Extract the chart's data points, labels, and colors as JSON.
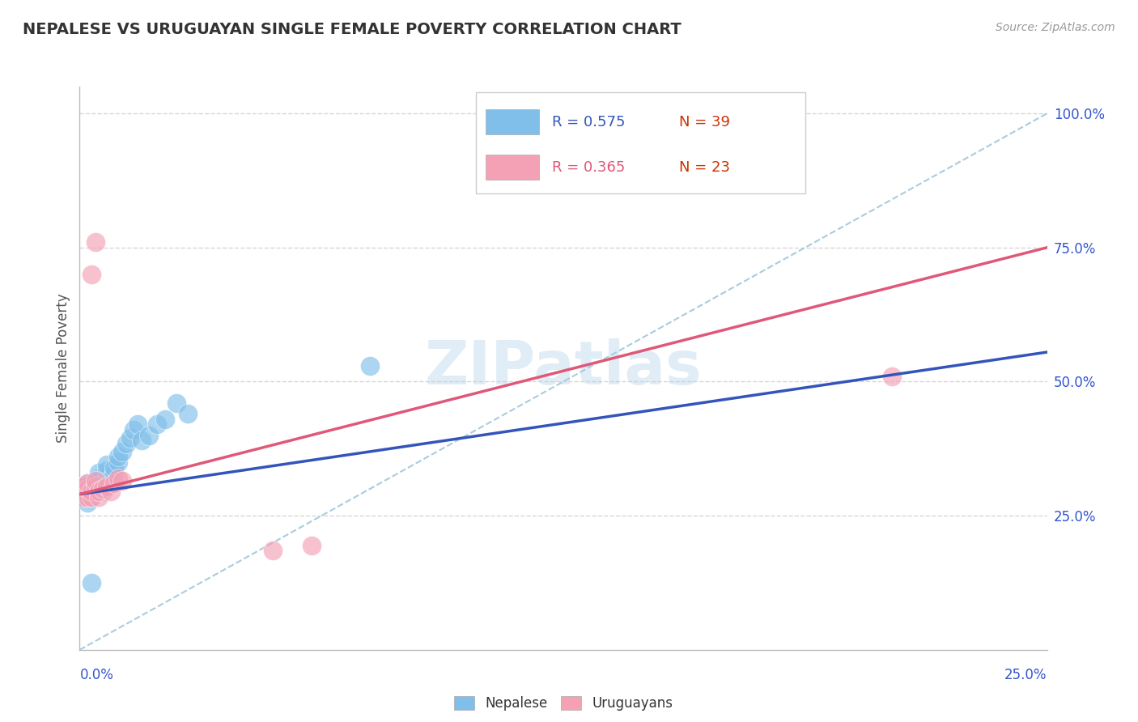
{
  "title": "NEPALESE VS URUGUAYAN SINGLE FEMALE POVERTY CORRELATION CHART",
  "source": "Source: ZipAtlas.com",
  "ylabel": "Single Female Poverty",
  "xlim": [
    0.0,
    0.25
  ],
  "ylim": [
    0.0,
    1.05
  ],
  "legend_blue_r": "R = 0.575",
  "legend_blue_n": "N = 39",
  "legend_pink_r": "R = 0.365",
  "legend_pink_n": "N = 23",
  "nepalese_color": "#7fbfea",
  "uruguayan_color": "#f4a0b5",
  "line_blue": "#3355bb",
  "line_pink": "#e05878",
  "ref_line_color": "#aaccdd",
  "grid_color": "#cccccc",
  "blue_x": [
    0.001,
    0.001,
    0.001,
    0.002,
    0.002,
    0.002,
    0.003,
    0.003,
    0.003,
    0.003,
    0.004,
    0.004,
    0.005,
    0.005,
    0.005,
    0.006,
    0.006,
    0.007,
    0.007,
    0.007,
    0.008,
    0.008,
    0.009,
    0.009,
    0.01,
    0.01,
    0.011,
    0.012,
    0.013,
    0.014,
    0.015,
    0.016,
    0.018,
    0.02,
    0.022,
    0.025,
    0.028,
    0.075,
    0.003
  ],
  "blue_y": [
    0.285,
    0.295,
    0.305,
    0.295,
    0.275,
    0.31,
    0.285,
    0.29,
    0.3,
    0.31,
    0.305,
    0.295,
    0.31,
    0.32,
    0.33,
    0.295,
    0.31,
    0.315,
    0.335,
    0.345,
    0.31,
    0.32,
    0.33,
    0.34,
    0.35,
    0.36,
    0.37,
    0.385,
    0.395,
    0.41,
    0.42,
    0.39,
    0.4,
    0.42,
    0.43,
    0.46,
    0.44,
    0.53,
    0.125
  ],
  "pink_x": [
    0.001,
    0.001,
    0.001,
    0.002,
    0.002,
    0.002,
    0.003,
    0.003,
    0.004,
    0.004,
    0.005,
    0.005,
    0.006,
    0.007,
    0.008,
    0.009,
    0.01,
    0.011,
    0.05,
    0.06,
    0.21,
    0.003,
    0.004
  ],
  "pink_y": [
    0.285,
    0.295,
    0.305,
    0.285,
    0.3,
    0.31,
    0.285,
    0.295,
    0.305,
    0.315,
    0.285,
    0.295,
    0.3,
    0.305,
    0.295,
    0.31,
    0.32,
    0.315,
    0.185,
    0.195,
    0.51,
    0.7,
    0.76
  ],
  "blue_line_x0": 0.0,
  "blue_line_y0": 0.29,
  "blue_line_x1": 0.25,
  "blue_line_y1": 0.555,
  "pink_line_x0": 0.0,
  "pink_line_y0": 0.29,
  "pink_line_x1": 0.25,
  "pink_line_y1": 0.75,
  "ref_line_x0": 0.0,
  "ref_line_y0": 0.0,
  "ref_line_x1": 0.25,
  "ref_line_y1": 1.0
}
